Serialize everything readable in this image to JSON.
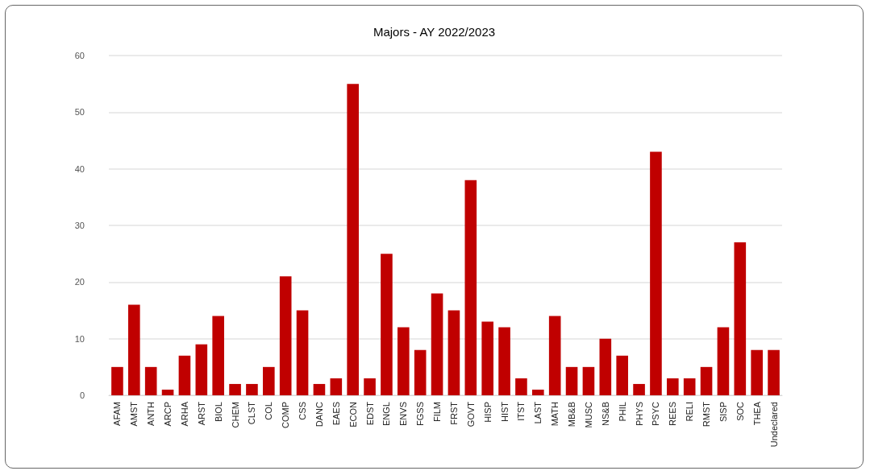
{
  "chart_data": {
    "type": "bar",
    "title": "Majors - AY 2022/2023",
    "categories": [
      "AFAM",
      "AMST",
      "ANTH",
      "ARCP",
      "ARHA",
      "ARST",
      "BIOL",
      "CHEM",
      "CLST",
      "COL",
      "COMP",
      "CSS",
      "DANC",
      "EAES",
      "ECON",
      "EDST",
      "ENGL",
      "ENVS",
      "FGSS",
      "FILM",
      "FRST",
      "GOVT",
      "HISP",
      "HIST",
      "ITST",
      "LAST",
      "MATH",
      "MB&B",
      "MUSC",
      "NS&B",
      "PHIL",
      "PHYS",
      "PSYC",
      "REES",
      "RELI",
      "RMST",
      "SISP",
      "SOC",
      "THEA",
      "Undeclared"
    ],
    "values": [
      5,
      16,
      5,
      1,
      7,
      9,
      14,
      2,
      2,
      5,
      21,
      15,
      2,
      3,
      55,
      3,
      25,
      12,
      8,
      18,
      15,
      38,
      13,
      12,
      3,
      1,
      14,
      5,
      5,
      10,
      7,
      2,
      43,
      3,
      3,
      5,
      12,
      27,
      8,
      8
    ],
    "color": "#c00000",
    "ylim": [
      0,
      60
    ],
    "yticks": [
      0,
      10,
      20,
      30,
      40,
      50,
      60
    ],
    "grid": "y"
  }
}
